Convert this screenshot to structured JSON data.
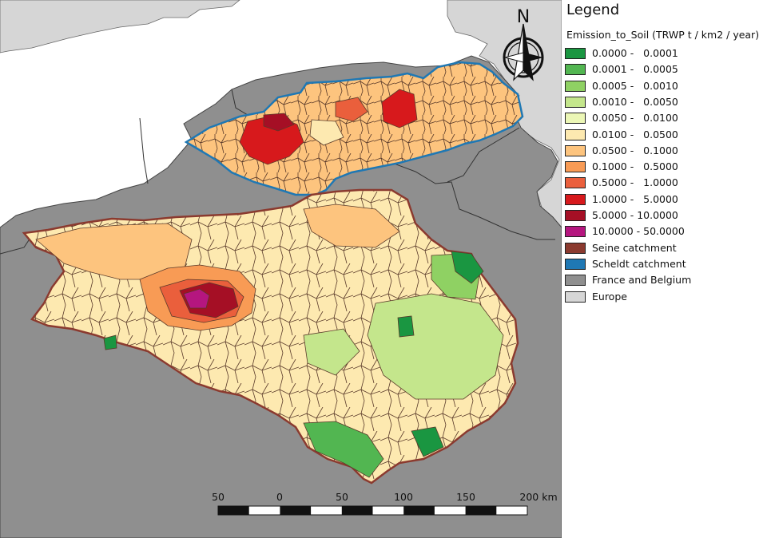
{
  "legend": {
    "title": "Legend",
    "subtitle": "Emission_to_Soil (TRWP t / km2 / year)",
    "classes": [
      {
        "label": "0.0000 -   0.0001",
        "color": "#1a9641"
      },
      {
        "label": "0.0001 -   0.0005",
        "color": "#52b651"
      },
      {
        "label": "0.0005 -   0.0010",
        "color": "#8fd163"
      },
      {
        "label": "0.0010 -   0.0050",
        "color": "#c4e68c"
      },
      {
        "label": "0.0050 -   0.0100",
        "color": "#ecf7b6"
      },
      {
        "label": "0.0100 -   0.0500",
        "color": "#fde9b0"
      },
      {
        "label": "0.0500 -   0.1000",
        "color": "#fdc47e"
      },
      {
        "label": "0.1000 -   0.5000",
        "color": "#f89b55"
      },
      {
        "label": "0.5000 -   1.0000",
        "color": "#ea5f3c"
      },
      {
        "label": "1.0000 -   5.0000",
        "color": "#d7191c"
      },
      {
        "label": "5.0000 - 10.0000",
        "color": "#a50f25"
      },
      {
        "label": "10.0000 - 50.0000",
        "color": "#b5167f"
      }
    ],
    "layers": [
      {
        "label": "Seine catchment",
        "color": "#8b3a2f"
      },
      {
        "label": "Scheldt catchment",
        "color": "#1f78b4"
      },
      {
        "label": "France and Belgium",
        "color": "#8f8f8f"
      },
      {
        "label": "Europe",
        "color": "#d6d6d6"
      }
    ]
  },
  "map": {
    "north_label": "N",
    "colors": {
      "sea": "#ffffff",
      "europe": "#d6d6d6",
      "france_belgium": "#8f8f8f",
      "border": "#333333"
    }
  },
  "scale_bar": {
    "ticks": [
      "50",
      "0",
      "50",
      "100",
      "150",
      "200 km"
    ]
  }
}
